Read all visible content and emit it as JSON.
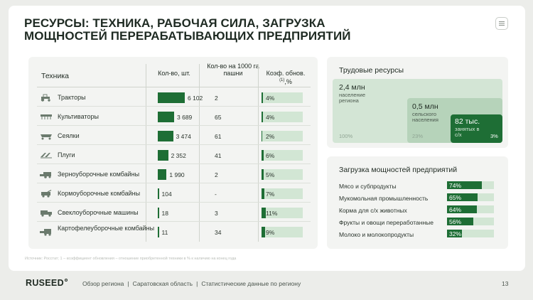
{
  "title": "РЕСУРСЫ: ТЕХНИКА, РАБОЧАЯ СИЛА, ЗАГРУЗКА МОЩНОСТЕЙ ПЕРЕРАБАТЫВАЮЩИХ ПРЕДПРИЯТИЙ",
  "menu_icon": "menu-lines-icon",
  "tech_table": {
    "headers": {
      "name": "Техника",
      "count": "Кол-во, шт.",
      "per_1000": "Кол-во на 1000 га пашни",
      "coef": "Коэф. обнов.",
      "coef_sup": "(1)",
      "coef_unit": ",%"
    },
    "rows": [
      {
        "name": "Тракторы",
        "icon": "tractor-icon",
        "count": "6 102",
        "count_value": 6102,
        "per_1000": "2",
        "coef": "4%",
        "coef_value": 4
      },
      {
        "name": "Культиваторы",
        "icon": "cultivator-icon",
        "count": "3 689",
        "count_value": 3689,
        "per_1000": "65",
        "coef": "4%",
        "coef_value": 4
      },
      {
        "name": "Сеялки",
        "icon": "seeder-icon",
        "count": "3 474",
        "count_value": 3474,
        "per_1000": "61",
        "coef": "2%",
        "coef_value": 2
      },
      {
        "name": "Плуги",
        "icon": "plow-icon",
        "count": "2 352",
        "count_value": 2352,
        "per_1000": "41",
        "coef": "6%",
        "coef_value": 6
      },
      {
        "name": "Зерноуборочные комбайны",
        "icon": "grain-harvester-icon",
        "count": "1 990",
        "count_value": 1990,
        "per_1000": "2",
        "coef": "5%",
        "coef_value": 5
      },
      {
        "name": "Кормоуборочные комбайны",
        "icon": "forage-harvester-icon",
        "count": "104",
        "count_value": 104,
        "per_1000": "-",
        "coef": "7%",
        "coef_value": 7
      },
      {
        "name": "Свеклоуборочные машины",
        "icon": "beet-harvester-icon",
        "count": "18",
        "count_value": 18,
        "per_1000": "3",
        "coef": "11%",
        "coef_value": 11
      },
      {
        "name": "Картофелеуборочные комбайны",
        "icon": "potato-harvester-icon",
        "count": "11",
        "count_value": 11,
        "per_1000": "34",
        "coef": "9%",
        "coef_value": 9
      }
    ]
  },
  "source_note": "Источник: Росстат; 1 – коэффициент обновления – отношение приобретенной техники в % к наличию на конец года",
  "labor": {
    "title": "Трудовые ресурсы",
    "population": {
      "value": "2,4 млн",
      "label": "население региона",
      "pct": "100%"
    },
    "rural": {
      "value": "0,5 млн",
      "label": "сельского населения",
      "pct": "23%"
    },
    "employed": {
      "value": "82 тыс.",
      "label": "занятых в с/х",
      "pct": "3%"
    }
  },
  "capacity": {
    "title": "Загрузка мощностей предприятий",
    "rows": [
      {
        "name": "Мясо и субпродукты",
        "value": "74%",
        "pct": 74
      },
      {
        "name": "Мукомольная промышленность",
        "value": "65%",
        "pct": 65
      },
      {
        "name": "Корма для с/х животных",
        "value": "64%",
        "pct": 64
      },
      {
        "name": "Фрукты и овощи переработанные",
        "value": "56%",
        "pct": 56
      },
      {
        "name": "Молоко и молокопродукты",
        "value": "32%",
        "pct": 32
      }
    ]
  },
  "footer": {
    "logo": "RUSEED",
    "nav": [
      "Обзор региона",
      "Саратовская область",
      "Статистические данные по региону"
    ],
    "page": "13"
  },
  "colors": {
    "accent": "#1e6e35",
    "light": "#d2e6d4",
    "mid": "#b6d3ba"
  }
}
